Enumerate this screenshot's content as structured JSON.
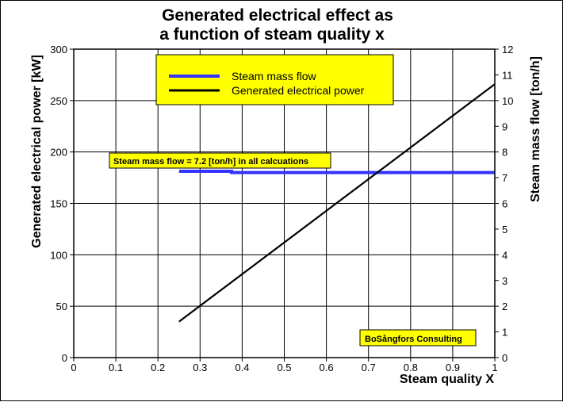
{
  "chart_data": {
    "type": "line",
    "title_line1": "Generated electrical effect as",
    "title_line2": "a function of steam quality x",
    "xlabel": "Steam quality X",
    "ylabel_left": "Generated electrical power [kW]",
    "ylabel_right": "Steam mass flow [ton/h]",
    "xlim": [
      0,
      1
    ],
    "ylim_left": [
      0,
      300
    ],
    "ylim_right": [
      0,
      12
    ],
    "x_ticks": [
      "0",
      "0.1",
      "0.2",
      "0.3",
      "0.4",
      "0.5",
      "0.6",
      "0.7",
      "0.8",
      "0.9",
      "1"
    ],
    "y_left_ticks": [
      "0",
      "50",
      "100",
      "150",
      "200",
      "250",
      "300"
    ],
    "y_right_ticks": [
      "0",
      "1",
      "2",
      "3",
      "4",
      "5",
      "6",
      "7",
      "8",
      "9",
      "10",
      "11",
      "12"
    ],
    "grid": true,
    "legend_placement": "top-center",
    "series": [
      {
        "name": "Steam mass flow",
        "axis": "right",
        "color": "#3333ff",
        "x": [
          0.25,
          0.375,
          0.375,
          1.0
        ],
        "y": [
          7.25,
          7.25,
          7.2,
          7.2
        ]
      },
      {
        "name": "Generated electrical power",
        "axis": "left",
        "color": "#000000",
        "x": [
          0.25,
          1.0
        ],
        "y": [
          35,
          266
        ]
      }
    ],
    "annotations": [
      {
        "text": "Steam mass flow = 7.2 [ton/h] in all calcuations"
      },
      {
        "text": "BoSångfors Consulting"
      }
    ],
    "label_bg": "#ffff00"
  }
}
